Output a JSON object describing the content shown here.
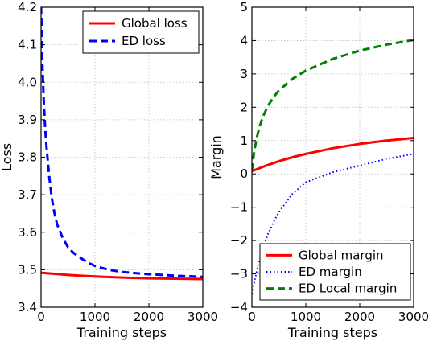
{
  "chart_data": [
    {
      "type": "line",
      "xlabel": "Training steps",
      "ylabel": "Loss",
      "xlim": [
        0,
        3000
      ],
      "ylim": [
        3.4,
        4.2
      ],
      "grid": true,
      "legend_placement": "top-right",
      "xticks": [
        0,
        1000,
        2000,
        3000
      ],
      "xtick_labels": [
        "0",
        "1000",
        "2000",
        "3000"
      ],
      "yticks": [
        3.4,
        3.5,
        3.6,
        3.7,
        3.8,
        3.9,
        4.0,
        4.1,
        4.2
      ],
      "ytick_labels": [
        "3.4",
        "3.5",
        "3.6",
        "3.7",
        "3.8",
        "3.9",
        "4.0",
        "4.1",
        "4.2"
      ],
      "series": [
        {
          "name": "Global loss",
          "color": "#ff0000",
          "style": "solid",
          "x": [
            0,
            250,
            500,
            750,
            1000,
            1500,
            2000,
            2500,
            3000
          ],
          "y": [
            3.492,
            3.489,
            3.486,
            3.484,
            3.482,
            3.479,
            3.477,
            3.476,
            3.475
          ]
        },
        {
          "name": "ED loss",
          "color": "#0000ff",
          "style": "dashed",
          "x": [
            0,
            25,
            50,
            75,
            100,
            150,
            200,
            250,
            300,
            400,
            500,
            600,
            700,
            800,
            900,
            1000,
            1250,
            1500,
            2000,
            2500,
            3000
          ],
          "y": [
            4.2,
            4.05,
            3.95,
            3.88,
            3.83,
            3.75,
            3.69,
            3.65,
            3.62,
            3.585,
            3.56,
            3.545,
            3.535,
            3.525,
            3.517,
            3.51,
            3.5,
            3.494,
            3.488,
            3.484,
            3.481
          ]
        }
      ]
    },
    {
      "type": "line",
      "xlabel": "Training steps",
      "ylabel": "Margin",
      "xlim": [
        0,
        3000
      ],
      "ylim": [
        -4,
        5
      ],
      "grid": true,
      "legend_placement": "bottom-right",
      "xticks": [
        0,
        1000,
        2000,
        3000
      ],
      "xtick_labels": [
        "0",
        "1000",
        "2000",
        "3000"
      ],
      "yticks": [
        -4,
        -3,
        -2,
        -1,
        0,
        1,
        2,
        3,
        4,
        5
      ],
      "ytick_labels": [
        "−4",
        "−3",
        "−2",
        "−1",
        "0",
        "1",
        "2",
        "3",
        "4",
        "5"
      ],
      "series": [
        {
          "name": "Global margin",
          "color": "#ff0000",
          "style": "solid",
          "x": [
            0,
            250,
            500,
            750,
            1000,
            1500,
            2000,
            2500,
            3000
          ],
          "y": [
            0.08,
            0.24,
            0.38,
            0.5,
            0.6,
            0.77,
            0.9,
            1.0,
            1.08
          ]
        },
        {
          "name": "ED margin",
          "color": "#0000ff",
          "style": "dotted",
          "x": [
            0,
            50,
            100,
            150,
            200,
            300,
            400,
            500,
            750,
            1000,
            1500,
            2000,
            2500,
            3000
          ],
          "y": [
            -3.6,
            -3.2,
            -2.85,
            -2.55,
            -2.25,
            -1.8,
            -1.45,
            -1.15,
            -0.6,
            -0.25,
            0.05,
            0.25,
            0.45,
            0.6
          ]
        },
        {
          "name": "ED Local margin",
          "color": "#008000",
          "style": "dashed",
          "x": [
            0,
            25,
            50,
            100,
            150,
            200,
            300,
            400,
            500,
            750,
            1000,
            1500,
            2000,
            2500,
            3000
          ],
          "y": [
            0.1,
            0.45,
            0.75,
            1.15,
            1.45,
            1.7,
            2.05,
            2.3,
            2.5,
            2.85,
            3.1,
            3.45,
            3.7,
            3.88,
            4.02
          ]
        }
      ]
    }
  ]
}
